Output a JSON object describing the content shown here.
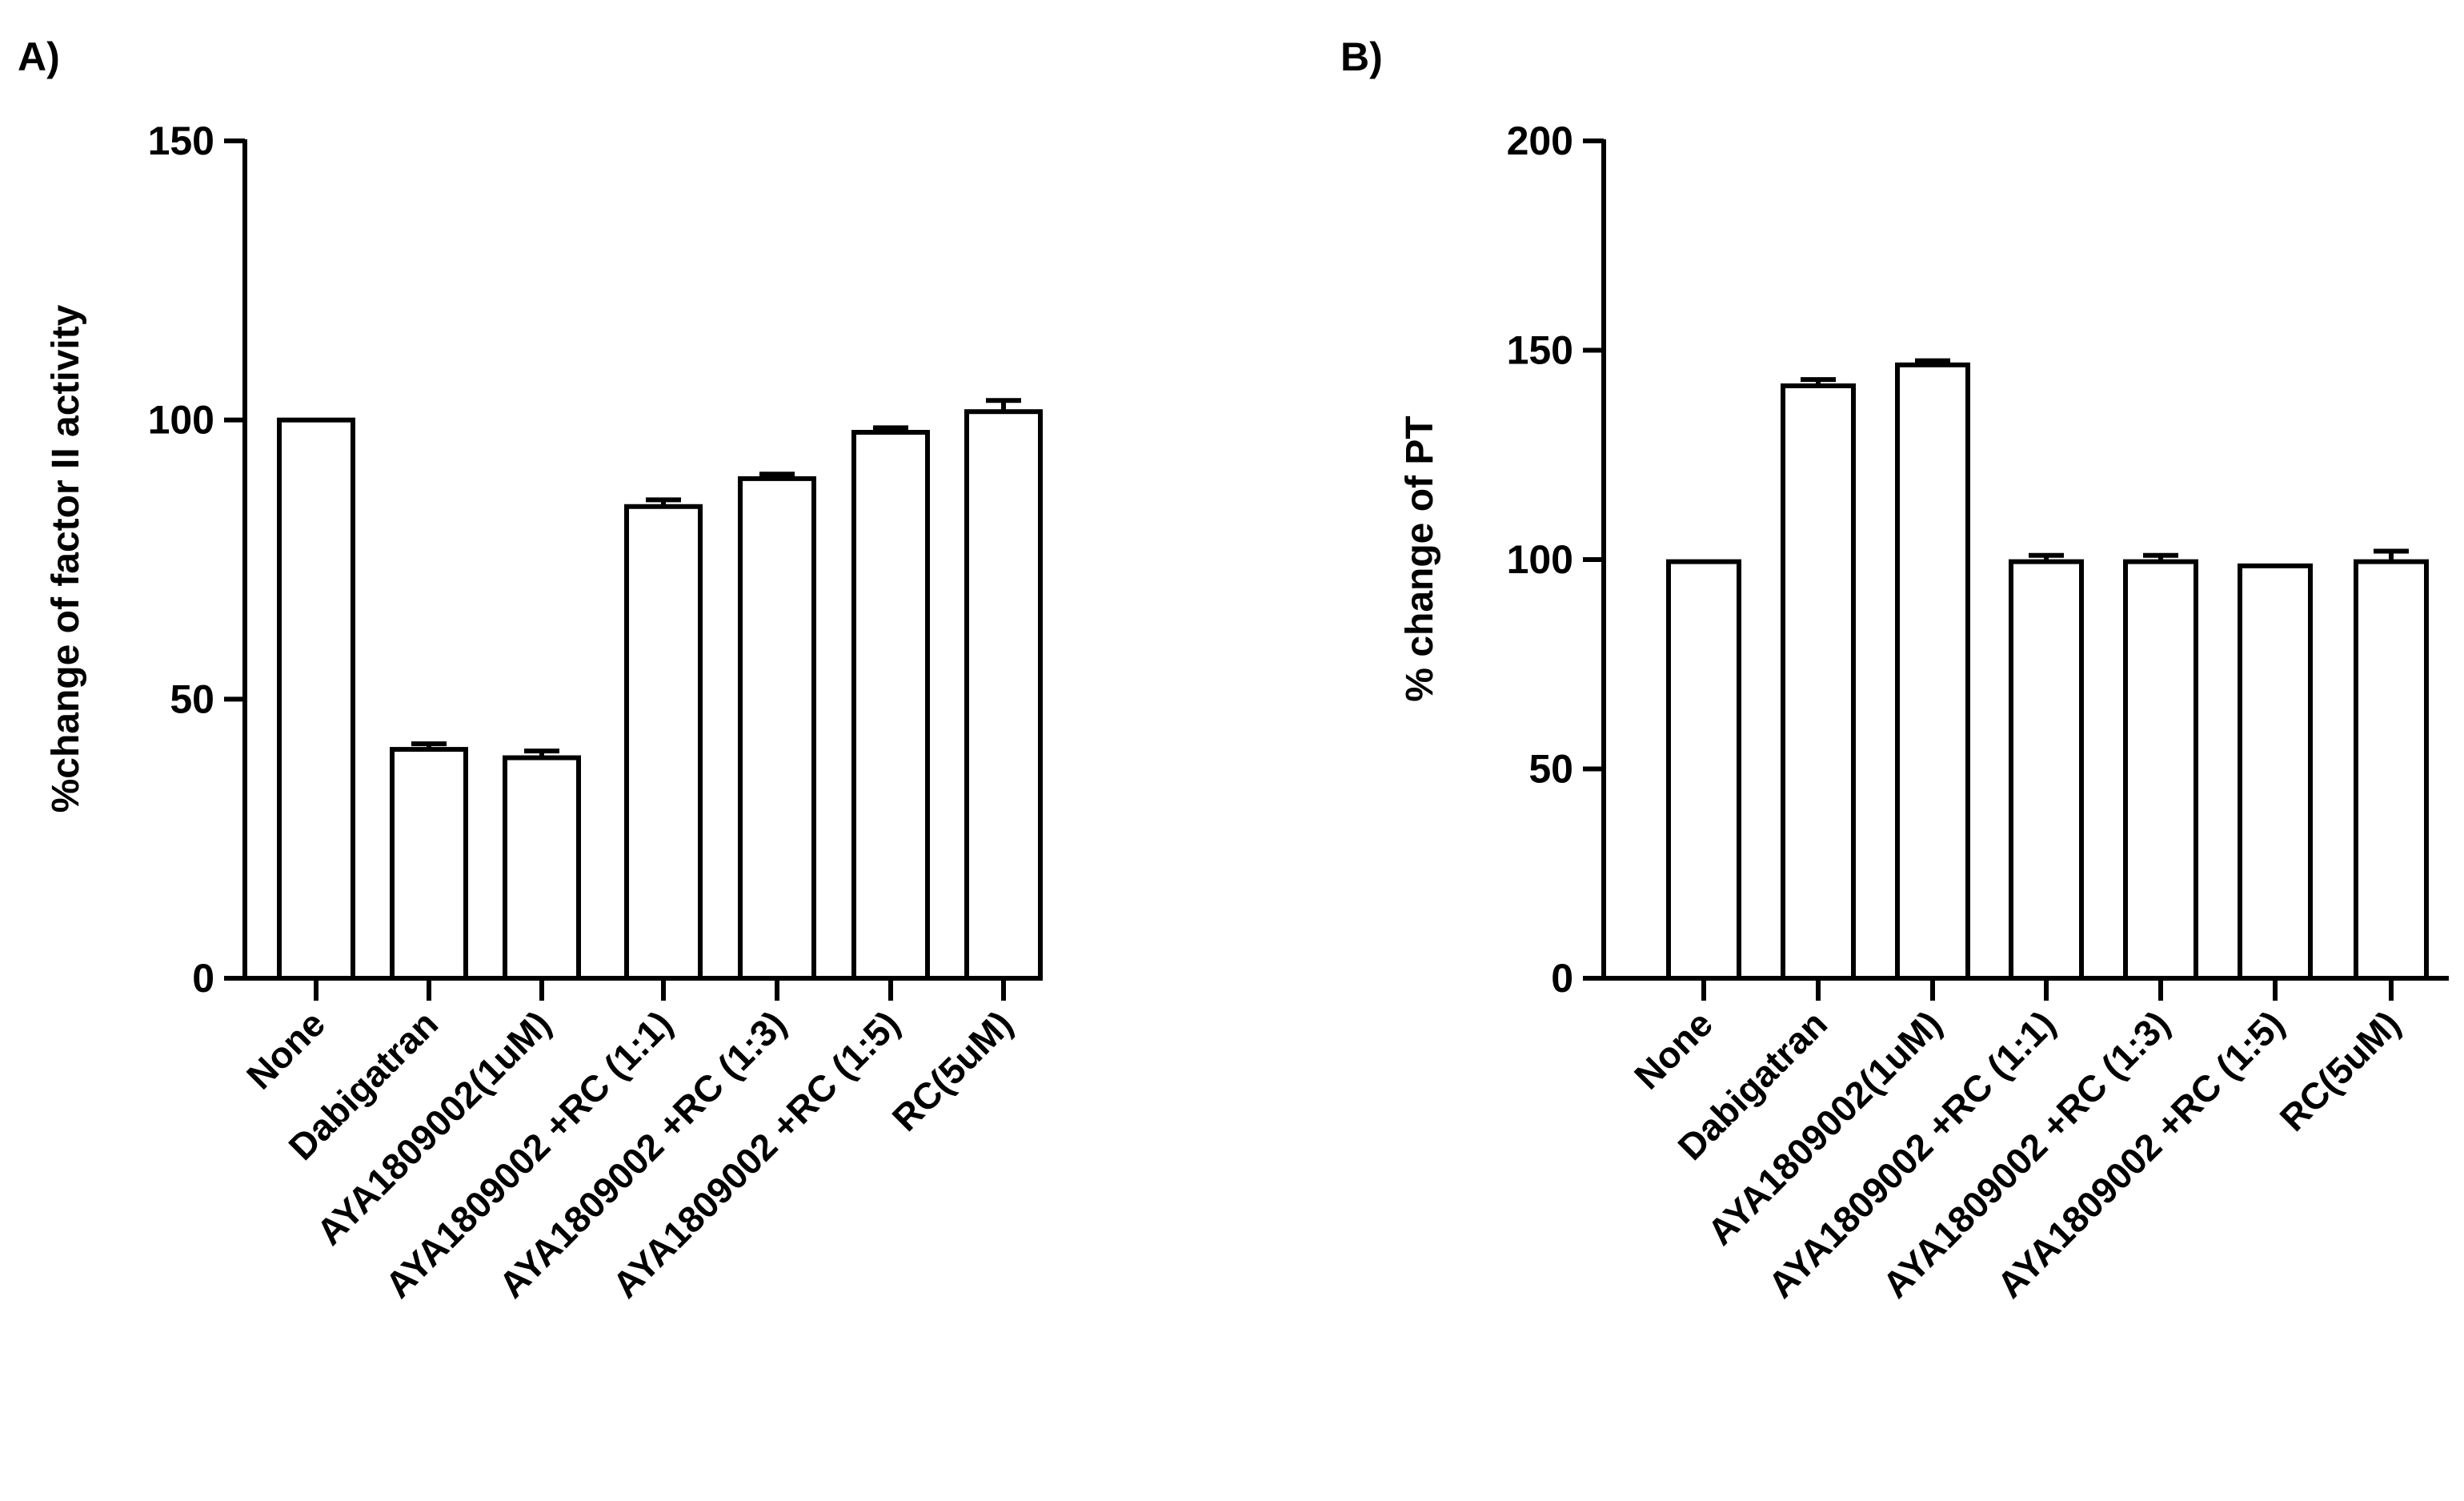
{
  "chart_data": [
    {
      "panel_label": "A)",
      "type": "bar",
      "title": "",
      "xlabel": "",
      "ylabel": "%change of factor II activity",
      "categories": [
        "None",
        "Dabigatran",
        "AYA1809002(1uM)",
        "AYA1809002 +RC (1:1)",
        "AYA1809002 +RC (1:3)",
        "AYA1809002 +RC (1:5)",
        "RC(5uM)"
      ],
      "values": [
        100,
        41,
        39.5,
        84.5,
        89.5,
        97.8,
        101.5
      ],
      "errors": [
        0,
        1,
        1.2,
        1.2,
        0.8,
        0.8,
        2
      ],
      "ylim": [
        0,
        150
      ],
      "yticks": [
        0,
        50,
        100,
        150
      ],
      "bar_fill": "#ffffff",
      "bar_stroke": "#000000",
      "grid": false,
      "legend": "none"
    },
    {
      "panel_label": "B)",
      "type": "bar",
      "title": "",
      "xlabel": "",
      "ylabel": "% change of PT",
      "categories": [
        "None",
        "Dabigatran",
        "AYA1809002(1uM)",
        "AYA1809002 +RC (1:1)",
        "AYA1809002 +RC (1:3)",
        "AYA1809002 +RC (1:5)",
        "RC(5uM)"
      ],
      "values": [
        99.5,
        141.5,
        146.5,
        99.5,
        99.5,
        98.5,
        99.5
      ],
      "errors": [
        0,
        1.5,
        1,
        1.5,
        1.5,
        0,
        2.5
      ],
      "ylim": [
        0,
        200
      ],
      "yticks": [
        0,
        50,
        100,
        150,
        200
      ],
      "bar_fill": "#ffffff",
      "bar_stroke": "#000000",
      "grid": false,
      "legend": "none"
    }
  ]
}
